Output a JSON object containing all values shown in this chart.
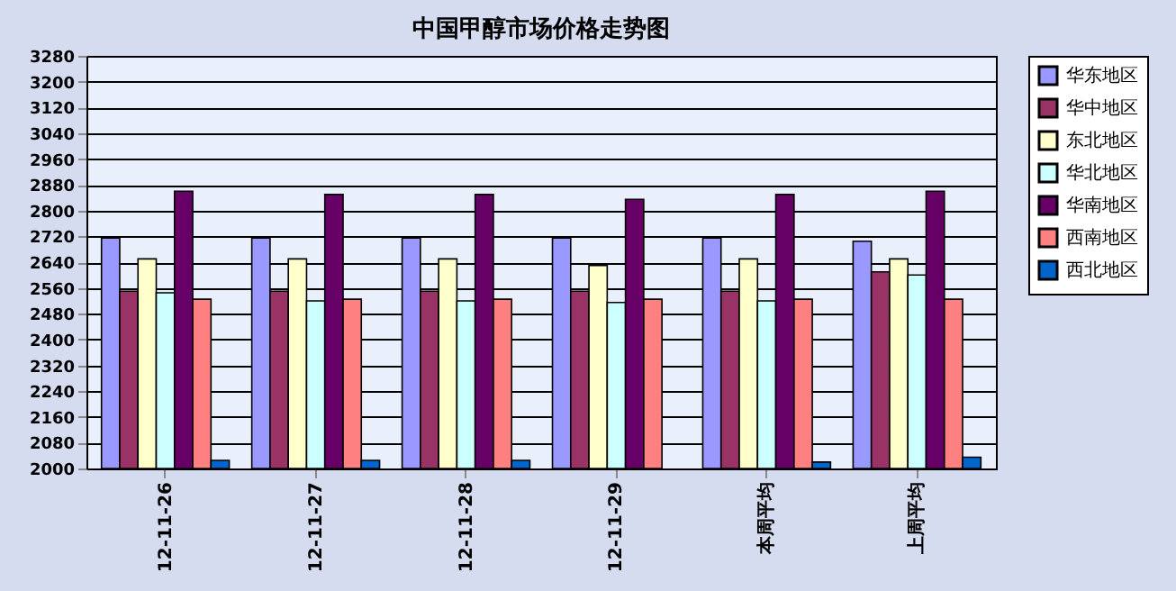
{
  "chart_data": {
    "type": "bar",
    "title": "中国甲醇市场价格走势图",
    "categories": [
      "12-11-26",
      "12-11-27",
      "12-11-28",
      "12-11-29",
      "本周平均",
      "上周平均"
    ],
    "series": [
      {
        "name": "华东地区",
        "color": "#9999ff",
        "values": [
          2715,
          2715,
          2715,
          2715,
          2715,
          2705
        ]
      },
      {
        "name": "华中地区",
        "color": "#993366",
        "values": [
          2550,
          2550,
          2550,
          2550,
          2550,
          2610
        ]
      },
      {
        "name": "东北地区",
        "color": "#ffffcc",
        "values": [
          2650,
          2650,
          2650,
          2630,
          2650,
          2650
        ]
      },
      {
        "name": "华北地区",
        "color": "#ccffff",
        "values": [
          2545,
          2520,
          2520,
          2515,
          2520,
          2600
        ]
      },
      {
        "name": "华南地区",
        "color": "#660066",
        "values": [
          2860,
          2850,
          2850,
          2835,
          2850,
          2860
        ]
      },
      {
        "name": "西南地区",
        "color": "#ff8080",
        "values": [
          2525,
          2525,
          2525,
          2525,
          2525,
          2525
        ]
      },
      {
        "name": "西北地区",
        "color": "#0066cc",
        "values": [
          2025,
          2025,
          2025,
          null,
          2020,
          2035
        ]
      }
    ],
    "ylim": [
      2000,
      3280
    ],
    "yticks": [
      2000,
      2080,
      2160,
      2240,
      2320,
      2400,
      2480,
      2560,
      2640,
      2720,
      2800,
      2880,
      2960,
      3040,
      3120,
      3200,
      3280
    ],
    "grid": "y",
    "legend": "right"
  }
}
